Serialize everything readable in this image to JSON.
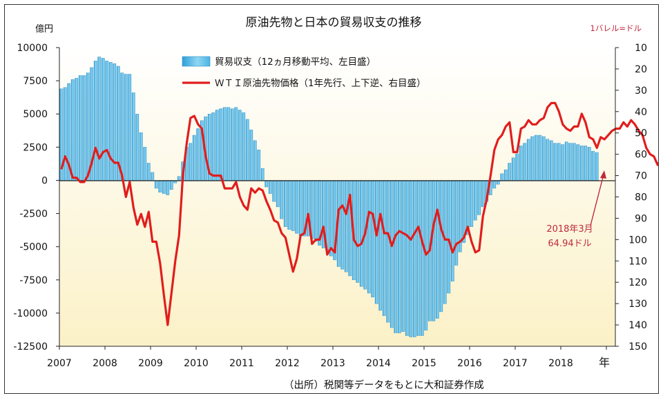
{
  "chart_data": {
    "type": "bar+line",
    "title": "原油先物と日本の貿易収支の推移",
    "left_unit": "億円",
    "right_unit": "1バレル=ドル",
    "x_unit": "年",
    "source": "（出所）税関等データをもとに大和証券作成",
    "x_ticks": [
      "2007",
      "2008",
      "2009",
      "2010",
      "2011",
      "2012",
      "2013",
      "2014",
      "2015",
      "2016",
      "2017",
      "2018"
    ],
    "left_axis": {
      "min": -12500,
      "max": 10000,
      "ticks": [
        "10000",
        "7500",
        "5000",
        "2500",
        "0",
        "-2500",
        "-5000",
        "-7500",
        "-10000",
        "-12500"
      ]
    },
    "right_axis": {
      "min": 10,
      "max": 150,
      "inverted": true,
      "ticks": [
        "10",
        "20",
        "30",
        "40",
        "50",
        "60",
        "70",
        "80",
        "90",
        "100",
        "110",
        "120",
        "130",
        "140",
        "150"
      ]
    },
    "legend": [
      {
        "name": "貿易収支（12ヵ月移動平均、左目盛）",
        "color": "#5bc0ea"
      },
      {
        "name": "ＷＴＩ原油先物価格（1年先行、上下逆、右目盛）",
        "color": "#e02020"
      }
    ],
    "annotation": {
      "line1": "2018年3月",
      "line2": "64.94ドル"
    },
    "trade_balance": {
      "start": "2007-01",
      "values": [
        6900,
        7000,
        7300,
        7600,
        7700,
        7900,
        7900,
        8100,
        8500,
        9000,
        9300,
        9200,
        9000,
        8900,
        8800,
        8600,
        8100,
        8000,
        8000,
        6600,
        5000,
        3600,
        2500,
        1300,
        600,
        -600,
        -900,
        -1000,
        -1100,
        -700,
        -200,
        300,
        1400,
        2500,
        2800,
        3400,
        3900,
        4500,
        4800,
        5000,
        5100,
        5300,
        5400,
        5500,
        5500,
        5400,
        5500,
        5300,
        5100,
        4600,
        3800,
        3000,
        2300,
        900,
        -500,
        -1000,
        -1600,
        -2000,
        -2900,
        -3500,
        -3700,
        -3800,
        -4000,
        -4200,
        -4200,
        -4200,
        -4400,
        -4600,
        -4900,
        -5100,
        -5300,
        -5700,
        -6000,
        -6500,
        -6700,
        -6900,
        -7200,
        -7500,
        -7700,
        -8000,
        -8200,
        -8500,
        -8800,
        -9300,
        -9800,
        -10200,
        -10700,
        -11100,
        -11500,
        -11500,
        -11400,
        -11700,
        -11800,
        -11800,
        -11700,
        -11700,
        -11300,
        -10600,
        -10600,
        -10400,
        -9900,
        -9300,
        -8500,
        -7600,
        -6400,
        -5400,
        -4700,
        -4100,
        -3500,
        -3000,
        -2600,
        -2000,
        -1600,
        -1100,
        -600,
        -300,
        500,
        800,
        1300,
        1700,
        2000,
        2600,
        2800,
        3100,
        3300,
        3400,
        3400,
        3300,
        3100,
        3000,
        2800,
        2800,
        2700,
        2900,
        2800,
        2800,
        2700,
        2600,
        2600,
        2500,
        2200,
        2100
      ]
    },
    "wti": {
      "start": "2007-01",
      "values": [
        67,
        61,
        65,
        71,
        71,
        73,
        73,
        70,
        64,
        57,
        62,
        59,
        58,
        62,
        64,
        64,
        70,
        80,
        73,
        85,
        93,
        88,
        94,
        87,
        101,
        101,
        111,
        126,
        140,
        125,
        110,
        98,
        70,
        55,
        43,
        42,
        46,
        48,
        61,
        69,
        70,
        70,
        70,
        76,
        76,
        76,
        73,
        80,
        84,
        86,
        76,
        78,
        76,
        77,
        82,
        86,
        91,
        92,
        97,
        99,
        107,
        115,
        109,
        98,
        97,
        88,
        102,
        100,
        100,
        94,
        107,
        104,
        106,
        86,
        84,
        88,
        79,
        100,
        103,
        102,
        97,
        87,
        88,
        98,
        88,
        97,
        97,
        103,
        98,
        96,
        97,
        98,
        100,
        97,
        94,
        101,
        107,
        105,
        93,
        86,
        95,
        100,
        100,
        106,
        102,
        101,
        99,
        94,
        101,
        106,
        105,
        89,
        81,
        70,
        58,
        53,
        51,
        47,
        45,
        59,
        59,
        48,
        47,
        44,
        46,
        46,
        44,
        43,
        38,
        36,
        36,
        40,
        46,
        48,
        49,
        47,
        47,
        41,
        45,
        52,
        53,
        57,
        52,
        53,
        51,
        49,
        48,
        48,
        45,
        47,
        44,
        46,
        49,
        51,
        57,
        60,
        61,
        65,
        62
      ]
    }
  }
}
